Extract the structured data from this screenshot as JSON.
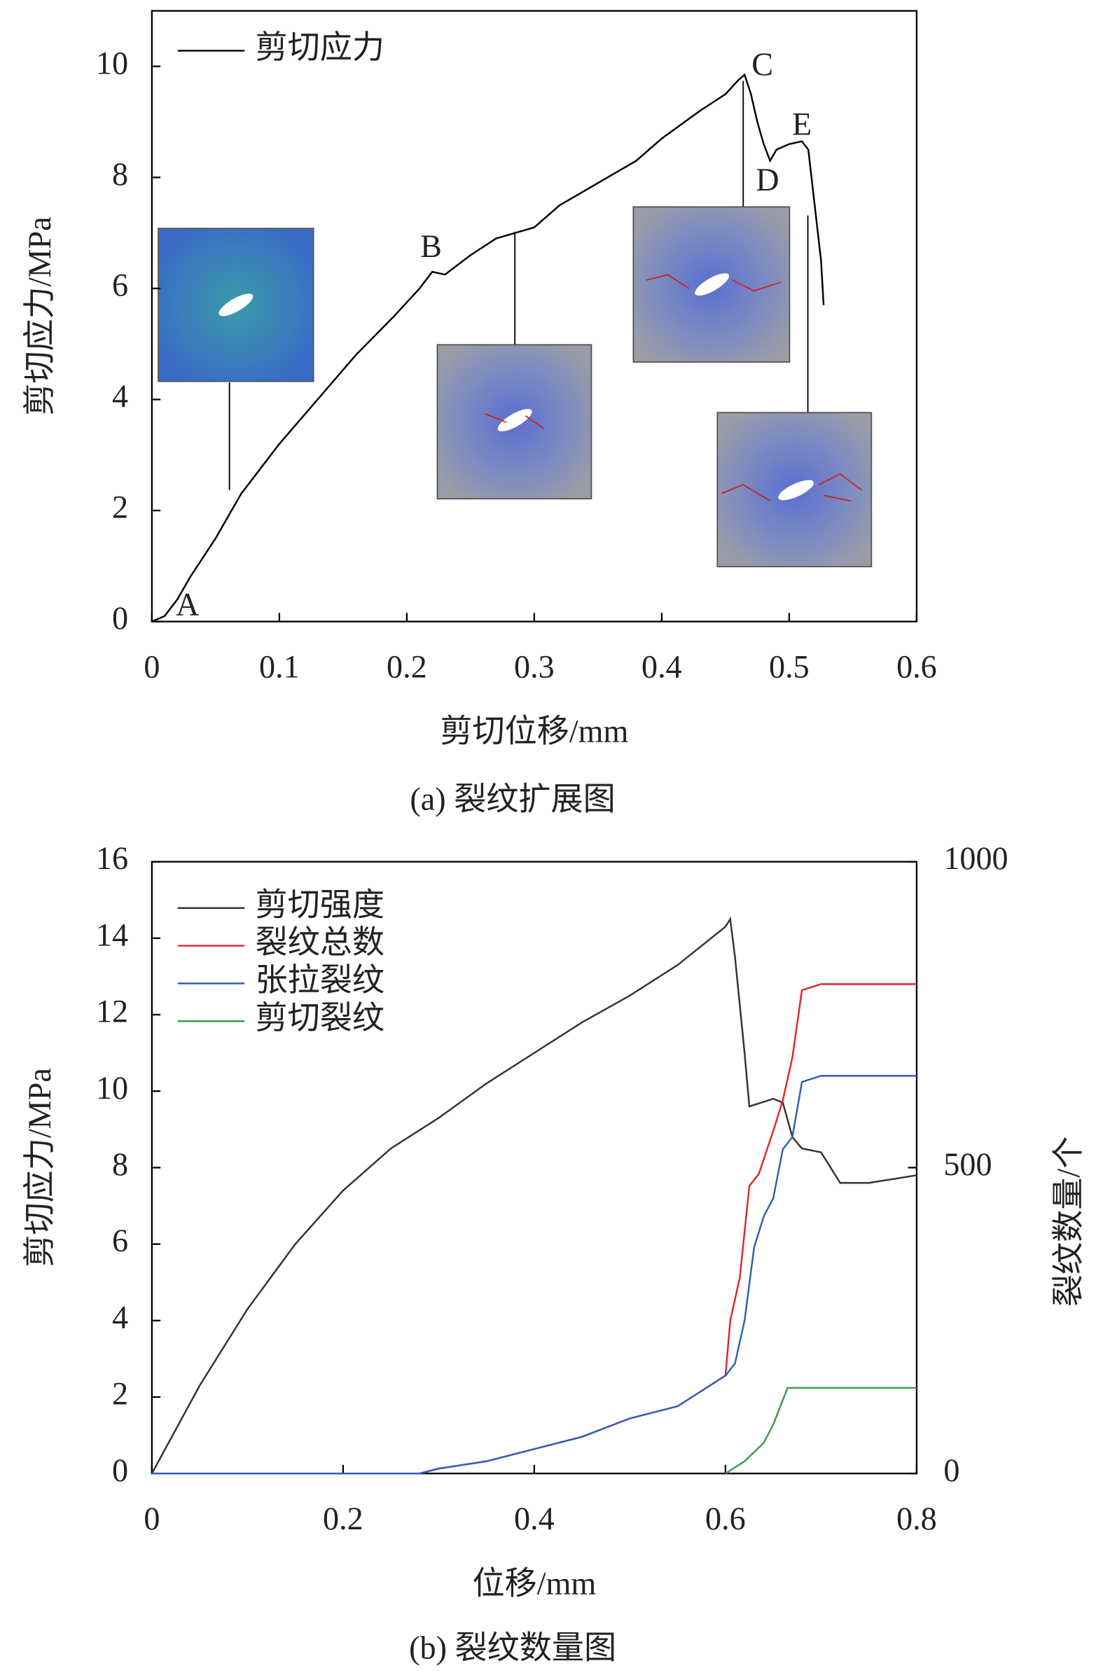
{
  "chart_data": [
    {
      "type": "line",
      "caption": "(a) 裂纹扩展图",
      "xlabel": "剪切位移/mm",
      "ylabel": "剪切应力/MPa",
      "legend": "upper left",
      "xlim": [
        0,
        0.6
      ],
      "ylim": [
        0,
        11
      ],
      "xticks": [
        0,
        0.1,
        0.2,
        0.3,
        0.4,
        0.5,
        0.6
      ],
      "yticks": [
        0,
        2,
        4,
        6,
        8,
        10
      ],
      "series": [
        {
          "name": "剪切应力",
          "color": "#000000",
          "x": [
            0,
            0.01,
            0.02,
            0.03,
            0.05,
            0.07,
            0.1,
            0.13,
            0.16,
            0.19,
            0.21,
            0.22,
            0.23,
            0.25,
            0.27,
            0.3,
            0.32,
            0.35,
            0.38,
            0.4,
            0.43,
            0.45,
            0.46,
            0.465,
            0.47,
            0.475,
            0.48,
            0.485,
            0.49,
            0.5,
            0.51,
            0.515,
            0.52,
            0.525,
            0.527
          ],
          "values": [
            0,
            0.1,
            0.4,
            0.8,
            1.5,
            2.3,
            3.2,
            4.0,
            4.8,
            5.5,
            6.0,
            6.3,
            6.25,
            6.6,
            6.9,
            7.1,
            7.5,
            7.9,
            8.3,
            8.7,
            9.2,
            9.5,
            9.75,
            9.85,
            9.5,
            9.0,
            8.6,
            8.3,
            8.5,
            8.6,
            8.65,
            8.5,
            7.5,
            6.5,
            5.7
          ]
        }
      ],
      "annotations": [
        {
          "text": "A",
          "x": 0.028,
          "y": 0.25
        },
        {
          "text": "B",
          "x": 0.219,
          "y": 6.7
        },
        {
          "text": "C",
          "x": 0.479,
          "y": 9.98
        },
        {
          "text": "D",
          "x": 0.483,
          "y": 7.9
        },
        {
          "text": "E",
          "x": 0.51,
          "y": 8.9
        }
      ]
    },
    {
      "type": "line",
      "caption": "(b) 裂纹数量图",
      "xlabel": "位移/mm",
      "ylabel": "剪切应力/MPa",
      "y2label": "裂纹数量/个",
      "legend": "upper left",
      "xlim": [
        0,
        0.8
      ],
      "ylim": [
        0,
        16
      ],
      "y2lim": [
        0,
        1000
      ],
      "xticks": [
        0,
        0.2,
        0.4,
        0.6,
        0.8
      ],
      "yticks": [
        0,
        2,
        4,
        6,
        8,
        10,
        12,
        14,
        16
      ],
      "y2ticks": [
        0,
        500,
        1000
      ],
      "series": [
        {
          "name": "剪切强度",
          "color": "#333333",
          "x": [
            0,
            0.05,
            0.1,
            0.15,
            0.2,
            0.25,
            0.3,
            0.35,
            0.4,
            0.45,
            0.5,
            0.55,
            0.6,
            0.605,
            0.61,
            0.62,
            0.625,
            0.65,
            0.66,
            0.67,
            0.68,
            0.7,
            0.71,
            0.72,
            0.75,
            0.8
          ],
          "values": [
            0,
            2.3,
            4.3,
            6.0,
            7.4,
            8.5,
            9.3,
            10.2,
            11.0,
            11.8,
            12.5,
            13.3,
            14.3,
            14.5,
            13.5,
            11,
            9.6,
            9.8,
            9.7,
            8.8,
            8.5,
            8.4,
            8.0,
            7.6,
            7.6,
            7.8
          ]
        },
        {
          "name": "裂纹总数",
          "color": "#e0262b",
          "axis": "y2",
          "x": [
            0,
            0.28,
            0.3,
            0.35,
            0.4,
            0.45,
            0.5,
            0.55,
            0.6,
            0.605,
            0.615,
            0.625,
            0.635,
            0.65,
            0.66,
            0.67,
            0.68,
            0.7,
            0.8
          ],
          "values": [
            0,
            0,
            8,
            20,
            40,
            60,
            90,
            110,
            160,
            250,
            320,
            470,
            490,
            560,
            610,
            680,
            790,
            800,
            800
          ]
        },
        {
          "name": "张拉裂纹",
          "color": "#2f5fb3",
          "axis": "y2",
          "x": [
            0,
            0.28,
            0.3,
            0.35,
            0.4,
            0.45,
            0.5,
            0.55,
            0.6,
            0.61,
            0.62,
            0.63,
            0.64,
            0.65,
            0.66,
            0.67,
            0.68,
            0.7,
            0.8
          ],
          "values": [
            0,
            0,
            8,
            20,
            40,
            60,
            90,
            110,
            160,
            180,
            250,
            370,
            420,
            450,
            530,
            550,
            640,
            650,
            650
          ]
        },
        {
          "name": "剪切裂纹",
          "color": "#3a9a48",
          "axis": "y2",
          "x": [
            0.6,
            0.62,
            0.64,
            0.65,
            0.66,
            0.665,
            0.7,
            0.8
          ],
          "values": [
            0,
            20,
            50,
            80,
            120,
            140,
            140,
            140
          ]
        }
      ]
    }
  ]
}
